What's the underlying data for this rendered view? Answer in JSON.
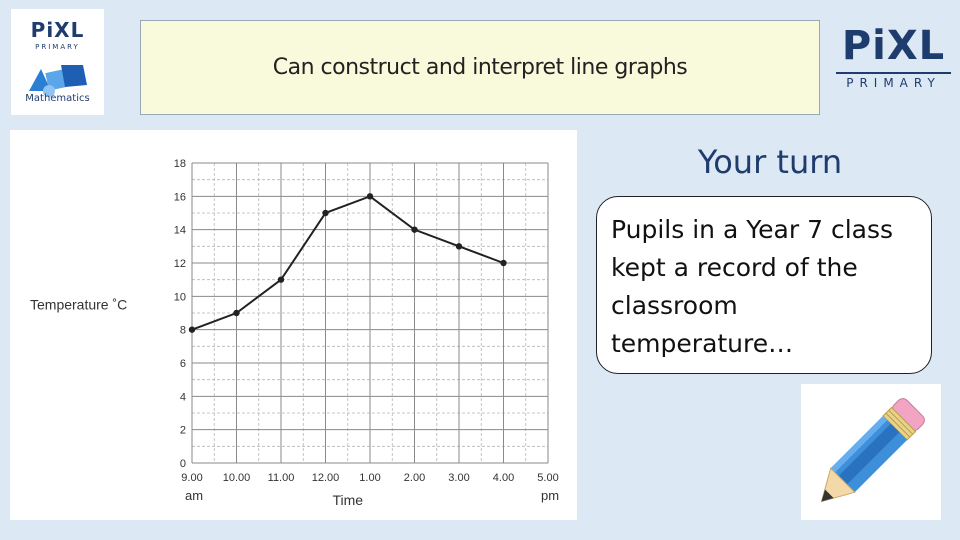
{
  "logo_left": {
    "brand": "Pi̇XL",
    "subtitle": "PRIMARY",
    "label": "Mathematics"
  },
  "title": "Can construct and interpret line graphs",
  "logo_right": {
    "brand": "Pi̇XL",
    "subtitle": "PRIMARY"
  },
  "your_turn": "Your turn",
  "bubble_text": "Pupils in a Year 7 class kept a record of the classroom temperature…",
  "colors": {
    "background": "#dce8f4",
    "title_box": "#f9f9dc",
    "brand_navy": "#1f3c6e",
    "pencil_body": "#3d8fd9",
    "pencil_eraser": "#f2a5c2"
  },
  "icons": [
    "pixl-maths-logo-icon",
    "pencil-icon"
  ],
  "chart_data": {
    "type": "line",
    "title": "",
    "xlabel": "Time",
    "ylabel": "Temperature ˚C",
    "x": [
      "9.00",
      "10.00",
      "11.00",
      "12.00",
      "1.00",
      "2.00",
      "3.00",
      "4.00"
    ],
    "x_ticks": [
      "9.00",
      "10.00",
      "11.00",
      "12.00",
      "1.00",
      "2.00",
      "3.00",
      "4.00",
      "5.00"
    ],
    "x_sublabels": [
      {
        "tick": "9.00",
        "text": "am"
      },
      {
        "tick": "5.00",
        "text": "pm"
      }
    ],
    "y_ticks": [
      "0",
      "2",
      "4",
      "6",
      "8",
      "10",
      "12",
      "14",
      "16",
      "18"
    ],
    "ylim": [
      0,
      18
    ],
    "series": [
      {
        "values": [
          8,
          9,
          11,
          15,
          16,
          14,
          13,
          12
        ]
      }
    ],
    "grid": true,
    "legend": "none"
  }
}
